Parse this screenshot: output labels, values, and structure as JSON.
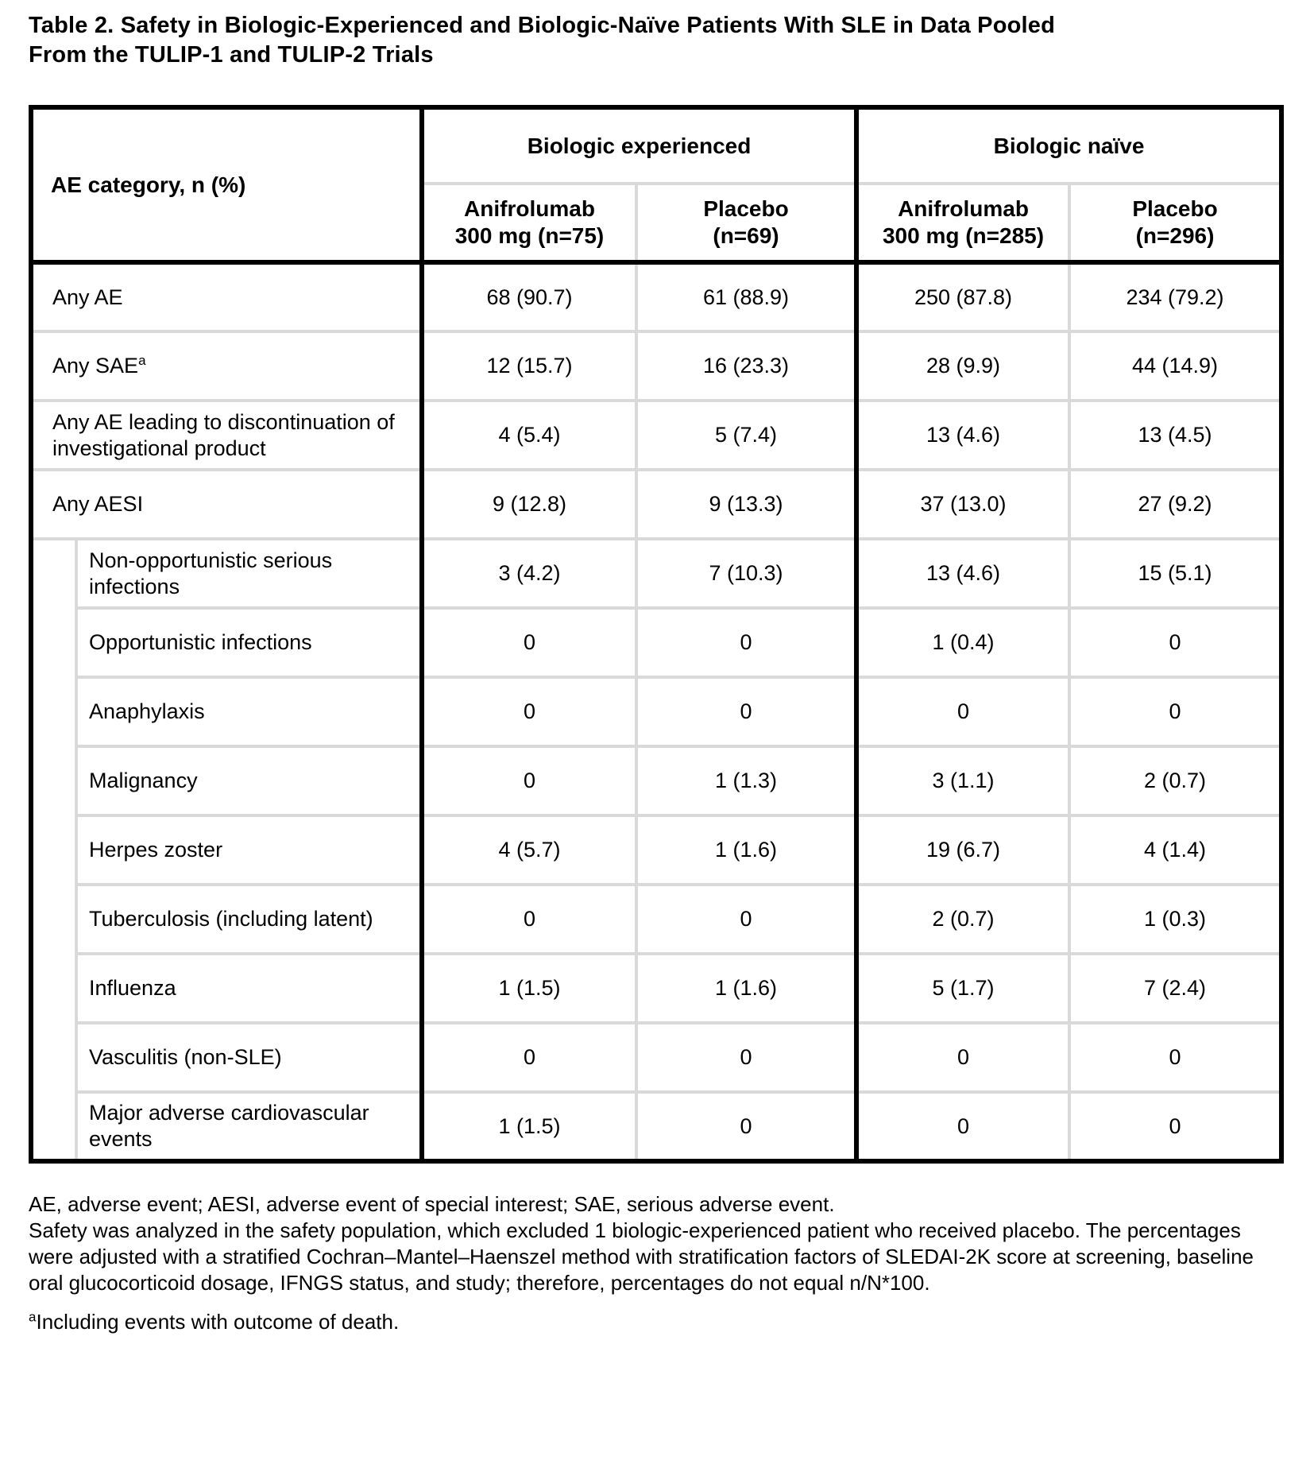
{
  "page": {
    "title_lines": [
      "Table 2. Safety in Biologic-Experienced and Biologic-Naïve Patients With SLE in Data Pooled",
      "From the TULIP-1 and TULIP-2 Trials"
    ]
  },
  "table": {
    "corner_header": "AE category, n (%)",
    "groups": [
      {
        "label": "Biologic experienced",
        "columns": [
          {
            "line1": "Anifrolumab",
            "line2": "300 mg (n=75)"
          },
          {
            "line1": "Placebo",
            "line2": "(n=69)"
          }
        ]
      },
      {
        "label": "Biologic naïve",
        "columns": [
          {
            "line1": "Anifrolumab",
            "line2": "300 mg (n=285)"
          },
          {
            "line1": "Placebo",
            "line2": "(n=296)"
          }
        ]
      }
    ],
    "rows": [
      {
        "label": "Any AE",
        "sup": "",
        "indent": false,
        "values": [
          "68 (90.7)",
          "61 (88.9)",
          "250 (87.8)",
          "234 (79.2)"
        ]
      },
      {
        "label": "Any SAE",
        "sup": "a",
        "indent": false,
        "values": [
          "12 (15.7)",
          "16 (23.3)",
          "28 (9.9)",
          "44 (14.9)"
        ]
      },
      {
        "label": "Any AE leading to discontinuation of investigational product",
        "sup": "",
        "indent": false,
        "values": [
          "4 (5.4)",
          "5 (7.4)",
          "13 (4.6)",
          "13 (4.5)"
        ]
      },
      {
        "label": "Any AESI",
        "sup": "",
        "indent": false,
        "values": [
          "9 (12.8)",
          "9 (13.3)",
          "37 (13.0)",
          "27 (9.2)"
        ]
      },
      {
        "label": "Non-opportunistic serious infections",
        "sup": "",
        "indent": true,
        "values": [
          "3 (4.2)",
          "7 (10.3)",
          "13 (4.6)",
          "15 (5.1)"
        ]
      },
      {
        "label": "Opportunistic infections",
        "sup": "",
        "indent": true,
        "values": [
          "0",
          "0",
          "1 (0.4)",
          "0"
        ]
      },
      {
        "label": "Anaphylaxis",
        "sup": "",
        "indent": true,
        "values": [
          "0",
          "0",
          "0",
          "0"
        ]
      },
      {
        "label": "Malignancy",
        "sup": "",
        "indent": true,
        "values": [
          "0",
          "1 (1.3)",
          "3 (1.1)",
          "2 (0.7)"
        ]
      },
      {
        "label": "Herpes zoster",
        "sup": "",
        "indent": true,
        "values": [
          "4 (5.7)",
          "1 (1.6)",
          "19 (6.7)",
          "4 (1.4)"
        ]
      },
      {
        "label": "Tuberculosis (including latent)",
        "sup": "",
        "indent": true,
        "values": [
          "0",
          "0",
          "2 (0.7)",
          "1 (0.3)"
        ]
      },
      {
        "label": "Influenza",
        "sup": "",
        "indent": true,
        "values": [
          "1 (1.5)",
          "1 (1.6)",
          "5 (1.7)",
          "7 (2.4)"
        ]
      },
      {
        "label": "Vasculitis (non-SLE)",
        "sup": "",
        "indent": true,
        "values": [
          "0",
          "0",
          "0",
          "0"
        ]
      },
      {
        "label": "Major adverse cardiovascular events",
        "sup": "",
        "indent": true,
        "values": [
          "1 (1.5)",
          "0",
          "0",
          "0"
        ]
      }
    ]
  },
  "footnotes": {
    "abbreviations": "AE, adverse event; AESI, adverse event of special interest; SAE, serious adverse event.",
    "methods": "Safety was analyzed in the safety population, which excluded 1 biologic-experienced patient who received placebo. The percentages were adjusted with a stratified Cochran–Mantel–Haenszel method with stratification factors of SLEDAI-2K score at screening, baseline oral glucocorticoid dosage, IFNGS status, and study; therefore, percentages do not equal n/N*100.",
    "footnote_a_marker": "a",
    "footnote_a_text": "Including events with outcome of death."
  }
}
